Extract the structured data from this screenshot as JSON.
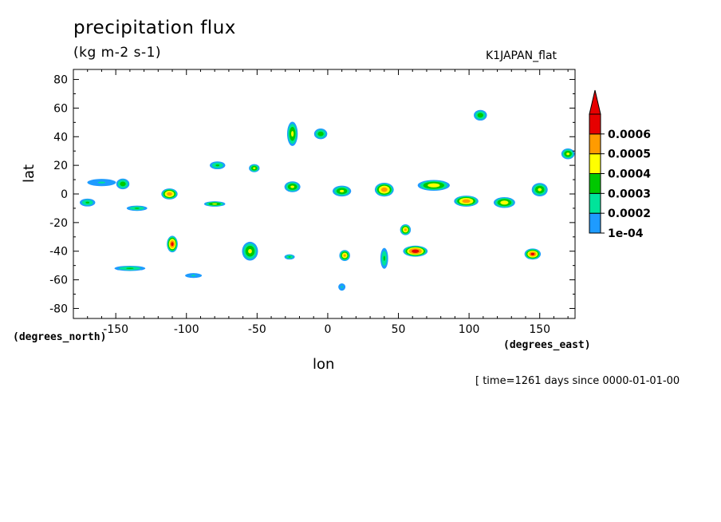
{
  "title": "precipitation flux",
  "units": "(kg m-2 s-1)",
  "dataset": "K1JAPAN_flat",
  "timestamp": "[ time=1261 days since 0000-01-01-00",
  "chart_data": {
    "type": "heatmap",
    "xlabel": "lon",
    "ylabel": "lat",
    "x_units": "(degrees_east)",
    "y_units": "(degrees_north)",
    "xlim": [
      -180,
      175
    ],
    "ylim": [
      -87,
      87
    ],
    "xticks": [
      -150,
      -100,
      -50,
      0,
      50,
      100,
      150
    ],
    "yticks": [
      80,
      60,
      40,
      20,
      0,
      -20,
      -40,
      -60,
      -80
    ],
    "xtick_labels": [
      "-150",
      "-100",
      "-50",
      "0",
      "50",
      "100",
      "150"
    ],
    "ytick_labels": [
      "80",
      "60",
      "40",
      "20",
      "0",
      "-20",
      "-40",
      "-60",
      "-80"
    ],
    "grid": false,
    "colorbar": {
      "levels": [
        0.0001,
        0.0002,
        0.0003,
        0.0004,
        0.0005,
        0.0006
      ],
      "labels": [
        "1e-04",
        "0.0002",
        "0.0003",
        "0.0004",
        "0.0005",
        "0.0006"
      ],
      "colors": [
        "#1e9bff",
        "#00e49a",
        "#00c800",
        "#ffff00",
        "#ff9b00",
        "#e60000"
      ],
      "extend": "max"
    },
    "features": [
      {
        "lon": -145,
        "lat": 7,
        "peak": 0.00035,
        "rx": 5,
        "ry": 4
      },
      {
        "lon": -170,
        "lat": -6,
        "peak": 0.0003,
        "rx": 6,
        "ry": 3
      },
      {
        "lon": -160,
        "lat": 8,
        "peak": 0.0002,
        "rx": 12,
        "ry": 3
      },
      {
        "lon": -135,
        "lat": -10,
        "peak": 0.0003,
        "rx": 8,
        "ry": 2
      },
      {
        "lon": -112,
        "lat": 0,
        "peak": 0.00055,
        "rx": 6,
        "ry": 4
      },
      {
        "lon": -110,
        "lat": -35,
        "peak": 0.0006,
        "rx": 4,
        "ry": 6
      },
      {
        "lon": -80,
        "lat": -7,
        "peak": 0.0004,
        "rx": 8,
        "ry": 2
      },
      {
        "lon": -78,
        "lat": 20,
        "peak": 0.0003,
        "rx": 6,
        "ry": 3
      },
      {
        "lon": -52,
        "lat": 18,
        "peak": 0.0004,
        "rx": 4,
        "ry": 3
      },
      {
        "lon": -55,
        "lat": -40,
        "peak": 0.0004,
        "rx": 6,
        "ry": 7
      },
      {
        "lon": -140,
        "lat": -52,
        "peak": 0.0003,
        "rx": 12,
        "ry": 2
      },
      {
        "lon": -25,
        "lat": 42,
        "peak": 0.0004,
        "rx": 4,
        "ry": 9
      },
      {
        "lon": -5,
        "lat": 42,
        "peak": 0.00035,
        "rx": 5,
        "ry": 4
      },
      {
        "lon": -25,
        "lat": 5,
        "peak": 0.0004,
        "rx": 6,
        "ry": 4
      },
      {
        "lon": -27,
        "lat": -44,
        "peak": 0.0003,
        "rx": 4,
        "ry": 2
      },
      {
        "lon": 10,
        "lat": 2,
        "peak": 0.0004,
        "rx": 7,
        "ry": 4
      },
      {
        "lon": 12,
        "lat": -43,
        "peak": 0.0005,
        "rx": 4,
        "ry": 4
      },
      {
        "lon": 40,
        "lat": 3,
        "peak": 0.00055,
        "rx": 7,
        "ry": 5
      },
      {
        "lon": 55,
        "lat": -25,
        "peak": 0.0005,
        "rx": 4,
        "ry": 4
      },
      {
        "lon": 62,
        "lat": -40,
        "peak": 0.00065,
        "rx": 9,
        "ry": 4
      },
      {
        "lon": 75,
        "lat": 6,
        "peak": 0.00045,
        "rx": 12,
        "ry": 4
      },
      {
        "lon": 98,
        "lat": -5,
        "peak": 0.00055,
        "rx": 9,
        "ry": 4
      },
      {
        "lon": 125,
        "lat": -6,
        "peak": 0.00045,
        "rx": 8,
        "ry": 4
      },
      {
        "lon": 145,
        "lat": -42,
        "peak": 0.0006,
        "rx": 6,
        "ry": 4
      },
      {
        "lon": 150,
        "lat": 3,
        "peak": 0.0004,
        "rx": 6,
        "ry": 5
      },
      {
        "lon": 170,
        "lat": 28,
        "peak": 0.0004,
        "rx": 5,
        "ry": 4
      },
      {
        "lon": 108,
        "lat": 55,
        "peak": 0.00035,
        "rx": 5,
        "ry": 4
      },
      {
        "lon": 40,
        "lat": -45,
        "peak": 0.0003,
        "rx": 3,
        "ry": 8
      },
      {
        "lon": 10,
        "lat": -65,
        "peak": 0.0002,
        "rx": 3,
        "ry": 3
      },
      {
        "lon": -95,
        "lat": -57,
        "peak": 0.0002,
        "rx": 7,
        "ry": 2
      }
    ]
  }
}
